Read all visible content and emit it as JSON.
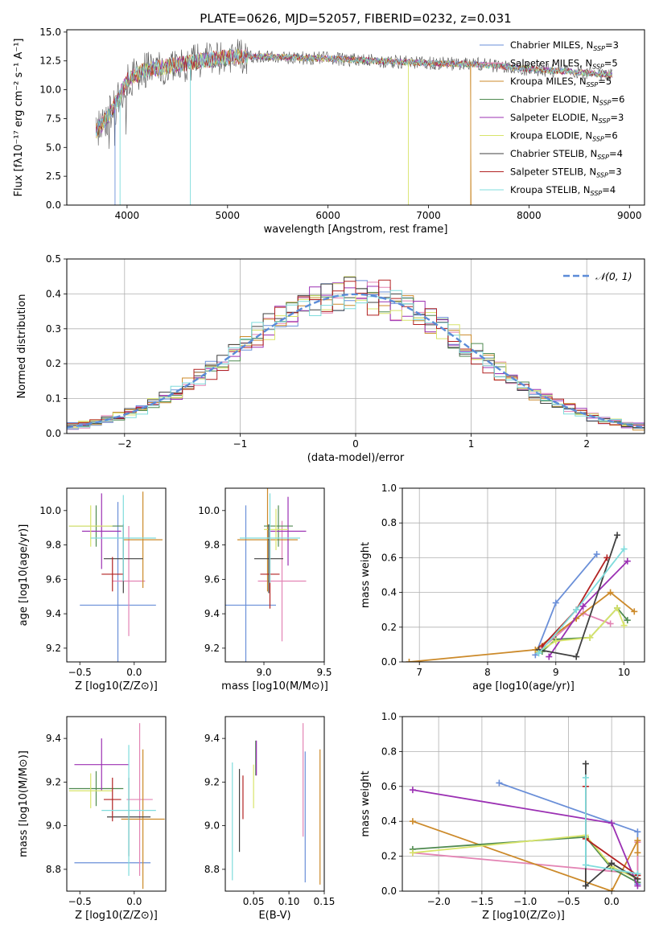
{
  "figure": {
    "title": "PLATE=0626, MJD=52057, FIBERID=0232, z=0.031"
  },
  "colors": [
    "#6a8fd8",
    "#e384b4",
    "#cc8a2a",
    "#4f8a50",
    "#9b30b3",
    "#d8e46a",
    "#404040",
    "#b22222",
    "#7fdcdc"
  ],
  "chart_data": [
    {
      "id": "spectrum",
      "type": "line",
      "title": "PLATE=0626, MJD=52057, FIBERID=0232, z=0.031",
      "xlabel": "wavelength [Angstrom, rest frame]",
      "ylabel": "Flux [fλ10⁻¹⁷ erg cm⁻² s⁻¹ A⁻¹]",
      "xlim": [
        3400,
        9150
      ],
      "ylim": [
        0,
        15.2
      ],
      "xticks": [
        4000,
        5000,
        6000,
        7000,
        8000,
        9000
      ],
      "yticks": [
        0.0,
        2.5,
        5.0,
        7.5,
        10.0,
        12.5,
        15.0
      ],
      "legend_position": "top-right",
      "continuum_x": [
        3700,
        3800,
        3900,
        4000,
        4200,
        4400,
        4600,
        4800,
        5000,
        5300,
        5600,
        6000,
        6500,
        7000,
        7500,
        8000,
        8500,
        8800
      ],
      "continuum_y": [
        6.5,
        7.5,
        9.0,
        10.8,
        11.8,
        12.0,
        12.3,
        12.6,
        12.8,
        12.9,
        12.8,
        12.7,
        12.5,
        12.3,
        12.2,
        11.8,
        11.5,
        11.3
      ],
      "series": [
        {
          "name": "Chabrier MILES, N_SSP=3"
        },
        {
          "name": "Salpeter MILES, N_SSP=5"
        },
        {
          "name": "Kroupa MILES, N_SSP=5"
        },
        {
          "name": "Chabrier ELODIE, N_SSP=6"
        },
        {
          "name": "Salpeter ELODIE, N_SSP=3"
        },
        {
          "name": "Kroupa ELODIE, N_SSP=6"
        },
        {
          "name": "Chabrier STELIB, N_SSP=4"
        },
        {
          "name": "Salpeter STELIB, N_SSP=3"
        },
        {
          "name": "Kroupa STELIB, N_SSP=4"
        }
      ]
    },
    {
      "id": "residuals",
      "type": "line",
      "xlabel": "(data-model)/error",
      "ylabel": "Normed distribution",
      "xlim": [
        -2.5,
        2.5
      ],
      "ylim": [
        0,
        0.5
      ],
      "xticks": [
        -2,
        -1,
        0,
        1,
        2
      ],
      "yticks": [
        0.0,
        0.1,
        0.2,
        0.3,
        0.4,
        0.5
      ],
      "grid": true,
      "legend": "𝒩(0, 1)",
      "legend_position": "top-right"
    },
    {
      "id": "age_vs_Z",
      "type": "scatter",
      "xlabel": "Z [log10(Z/Z⊙)]",
      "ylabel": "age  [log10(age/yr)]",
      "xlim": [
        -0.62,
        0.29
      ],
      "ylim": [
        9.12,
        10.13
      ],
      "xticks": [
        -0.5,
        0.0
      ],
      "yticks": [
        9.2,
        9.4,
        9.6,
        9.8,
        10.0
      ],
      "points": [
        {
          "x": -0.15,
          "y": 9.45,
          "xerr": 0.35,
          "yerr": 0.6
        },
        {
          "x": -0.05,
          "y": 9.59,
          "xerr": 0.15,
          "yerr": 0.32
        },
        {
          "x": 0.08,
          "y": 9.83,
          "xerr": 0.18,
          "yerr": 0.28
        },
        {
          "x": -0.35,
          "y": 9.91,
          "xerr": 0.25,
          "yerr": 0.12
        },
        {
          "x": -0.3,
          "y": 9.88,
          "xerr": 0.18,
          "yerr": 0.22
        },
        {
          "x": -0.4,
          "y": 9.91,
          "xerr": 0.2,
          "yerr": 0.12
        },
        {
          "x": -0.1,
          "y": 9.72,
          "xerr": 0.18,
          "yerr": 0.2
        },
        {
          "x": -0.2,
          "y": 9.63,
          "xerr": 0.1,
          "yerr": 0.1
        },
        {
          "x": -0.1,
          "y": 9.84,
          "xerr": 0.3,
          "yerr": 0.25
        }
      ]
    },
    {
      "id": "age_vs_mass",
      "type": "scatter",
      "xlabel": "mass [log10(M/M⊙)]",
      "ylabel": "",
      "xlim": [
        8.68,
        9.5
      ],
      "ylim": [
        9.12,
        10.13
      ],
      "xticks": [
        9.0,
        9.5
      ],
      "yticks": [
        9.2,
        9.4,
        9.6,
        9.8,
        10.0
      ],
      "points": [
        {
          "x": 8.85,
          "y": 9.45,
          "xerr": 0.25,
          "yerr": 0.58
        },
        {
          "x": 9.15,
          "y": 9.59,
          "xerr": 0.2,
          "yerr": 0.35
        },
        {
          "x": 9.03,
          "y": 9.83,
          "xerr": 0.25,
          "yerr": 0.3
        },
        {
          "x": 9.12,
          "y": 9.91,
          "xerr": 0.12,
          "yerr": 0.12
        },
        {
          "x": 9.2,
          "y": 9.88,
          "xerr": 0.15,
          "yerr": 0.2
        },
        {
          "x": 9.1,
          "y": 9.89,
          "xerr": 0.1,
          "yerr": 0.12
        },
        {
          "x": 9.04,
          "y": 9.72,
          "xerr": 0.12,
          "yerr": 0.2
        },
        {
          "x": 9.05,
          "y": 9.63,
          "xerr": 0.08,
          "yerr": 0.2
        },
        {
          "x": 9.05,
          "y": 9.84,
          "xerr": 0.25,
          "yerr": 0.26
        }
      ]
    },
    {
      "id": "weight_vs_age",
      "type": "line",
      "xlabel": "age  [log10(age/yr)]",
      "ylabel": "mass weight",
      "xlim": [
        6.75,
        10.3
      ],
      "ylim": [
        0,
        1.0
      ],
      "xticks": [
        7,
        8,
        9,
        10
      ],
      "yticks": [
        0.0,
        0.2,
        0.4,
        0.6,
        0.8,
        1.0
      ],
      "grid": true,
      "series": [
        {
          "x": [
            8.7,
            9.0,
            9.6
          ],
          "y": [
            0.04,
            0.34,
            0.62
          ]
        },
        {
          "x": [
            8.8,
            9.4,
            9.8
          ],
          "y": [
            0.08,
            0.28,
            0.22
          ]
        },
        {
          "x": [
            6.85,
            8.7,
            9.3,
            9.8,
            10.15
          ],
          "y": [
            0.0,
            0.07,
            0.25,
            0.4,
            0.29
          ]
        },
        {
          "x": [
            8.8,
            9.0,
            9.5,
            9.9,
            10.05
          ],
          "y": [
            0.06,
            0.13,
            0.14,
            0.31,
            0.24
          ]
        },
        {
          "x": [
            8.9,
            9.4,
            10.05
          ],
          "y": [
            0.03,
            0.32,
            0.58
          ]
        },
        {
          "x": [
            8.75,
            9.0,
            9.5,
            9.9,
            10.0
          ],
          "y": [
            0.06,
            0.12,
            0.14,
            0.31,
            0.21
          ]
        },
        {
          "x": [
            8.75,
            9.3,
            9.9
          ],
          "y": [
            0.07,
            0.03,
            0.73
          ]
        },
        {
          "x": [
            8.8,
            9.3,
            9.75
          ],
          "y": [
            0.09,
            0.3,
            0.6
          ]
        },
        {
          "x": [
            8.75,
            9.3,
            10.0
          ],
          "y": [
            0.05,
            0.3,
            0.65
          ]
        }
      ]
    },
    {
      "id": "mass_vs_Z",
      "type": "scatter",
      "xlabel": "Z [log10(Z/Z⊙)]",
      "ylabel": "mass [log10(M/M⊙)]",
      "xlim": [
        -0.62,
        0.29
      ],
      "ylim": [
        8.7,
        9.5
      ],
      "xticks": [
        -0.5,
        0.0
      ],
      "yticks": [
        8.8,
        9.0,
        9.2,
        9.4
      ],
      "points": [
        {
          "x": -0.2,
          "y": 8.83,
          "xerr": 0.35,
          "yerr": 0.0
        },
        {
          "x": 0.05,
          "y": 9.12,
          "xerr": 0.12,
          "yerr": 0.35
        },
        {
          "x": 0.08,
          "y": 9.03,
          "xerr": 0.2,
          "yerr": 0.32
        },
        {
          "x": -0.35,
          "y": 9.17,
          "xerr": 0.25,
          "yerr": 0.08
        },
        {
          "x": -0.3,
          "y": 9.28,
          "xerr": 0.25,
          "yerr": 0.12
        },
        {
          "x": -0.4,
          "y": 9.16,
          "xerr": 0.2,
          "yerr": 0.08
        },
        {
          "x": -0.05,
          "y": 9.04,
          "xerr": 0.2,
          "yerr": 0.18
        },
        {
          "x": -0.2,
          "y": 9.12,
          "xerr": 0.08,
          "yerr": 0.1
        },
        {
          "x": -0.05,
          "y": 9.07,
          "xerr": 0.25,
          "yerr": 0.3
        }
      ]
    },
    {
      "id": "mass_vs_ebv",
      "type": "scatter",
      "xlabel": "E(B-V)",
      "ylabel": "",
      "xlim": [
        0.01,
        0.15
      ],
      "ylim": [
        8.7,
        9.5
      ],
      "xticks": [
        0.05,
        0.1,
        0.15
      ],
      "yticks": [
        8.8,
        9.0,
        9.2,
        9.4
      ],
      "points": [
        {
          "x": 0.123,
          "y": 9.04,
          "yerr": 0.3
        },
        {
          "x": 0.12,
          "y": 9.21,
          "yerr": 0.26
        },
        {
          "x": 0.144,
          "y": 9.04,
          "yerr": 0.31
        },
        {
          "x": 0.053,
          "y": 9.31,
          "yerr": 0.08
        },
        {
          "x": 0.054,
          "y": 9.31,
          "yerr": 0.08
        },
        {
          "x": 0.05,
          "y": 9.18,
          "yerr": 0.1
        },
        {
          "x": 0.03,
          "y": 9.07,
          "yerr": 0.19
        },
        {
          "x": 0.035,
          "y": 9.13,
          "yerr": 0.1
        },
        {
          "x": 0.02,
          "y": 9.02,
          "yerr": 0.27
        }
      ]
    },
    {
      "id": "weight_vs_Z",
      "type": "line",
      "xlabel": "Z [log10(Z/Z⊙)]",
      "ylabel": "mass weight",
      "xlim": [
        -2.42,
        0.38
      ],
      "ylim": [
        0,
        1.0
      ],
      "xticks": [
        -2.0,
        -1.5,
        -1.0,
        -0.5,
        0.0
      ],
      "yticks": [
        0.0,
        0.2,
        0.4,
        0.6,
        0.8,
        1.0
      ],
      "grid": true,
      "series": [
        {
          "x": [
            -1.3,
            0.3,
            0.3
          ],
          "y": [
            0.62,
            0.34,
            0.04
          ]
        },
        {
          "x": [
            -2.3,
            0.3,
            0.3
          ],
          "y": [
            0.22,
            0.1,
            0.28
          ]
        },
        {
          "x": [
            -2.3,
            0.0,
            0.3,
            0.3
          ],
          "y": [
            0.4,
            0.0,
            0.29,
            0.22
          ]
        },
        {
          "x": [
            -2.3,
            -0.3,
            0.0,
            0.3
          ],
          "y": [
            0.24,
            0.31,
            0.13,
            0.05
          ]
        },
        {
          "x": [
            -2.3,
            0.0,
            0.3
          ],
          "y": [
            0.58,
            0.39,
            0.03
          ]
        },
        {
          "x": [
            -2.3,
            -0.3,
            0.0,
            0.3
          ],
          "y": [
            0.22,
            0.32,
            0.14,
            0.07
          ]
        },
        {
          "x": [
            -0.3,
            -0.3,
            0.0,
            0.3
          ],
          "y": [
            0.73,
            0.03,
            0.16,
            0.07
          ]
        },
        {
          "x": [
            -0.3,
            -0.3,
            0.3
          ],
          "y": [
            0.6,
            0.3,
            0.09
          ]
        },
        {
          "x": [
            -0.3,
            -0.3,
            0.3
          ],
          "y": [
            0.65,
            0.15,
            0.1
          ]
        }
      ]
    }
  ]
}
